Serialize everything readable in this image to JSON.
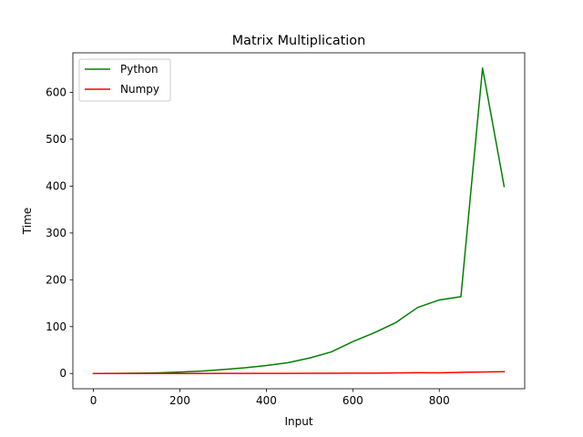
{
  "chart_data": {
    "type": "line",
    "title": "Matrix Multiplication",
    "xlabel": "Input",
    "ylabel": "Time",
    "xlim": [
      -47.5,
      997.5
    ],
    "ylim": [
      -32.6,
      684.6
    ],
    "xticks": [
      0,
      200,
      400,
      600,
      800
    ],
    "yticks": [
      0,
      100,
      200,
      300,
      400,
      500,
      600
    ],
    "grid": false,
    "legend_position": "upper-left",
    "x": [
      0,
      50,
      100,
      150,
      200,
      250,
      300,
      350,
      400,
      450,
      500,
      550,
      600,
      650,
      700,
      750,
      800,
      850,
      900,
      950
    ],
    "series": [
      {
        "name": "Python",
        "color": "#008000",
        "values": [
          0,
          0.2,
          0.6,
          1.5,
          3,
          5,
          8.5,
          12,
          17,
          23,
          33,
          46,
          68,
          87,
          109,
          141,
          157,
          164,
          652,
          399
        ]
      },
      {
        "name": "Numpy",
        "color": "#ff0000",
        "values": [
          0,
          0,
          0,
          0,
          0,
          0,
          0.1,
          0.1,
          0.2,
          0.3,
          0.4,
          0.5,
          0.7,
          0.8,
          1.2,
          1.6,
          1.5,
          2.5,
          3.2,
          3.8
        ]
      }
    ]
  }
}
